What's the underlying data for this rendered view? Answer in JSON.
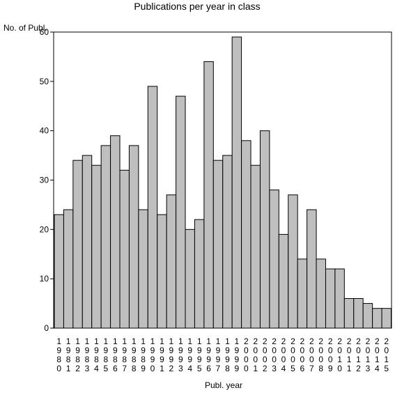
{
  "chart_data": {
    "type": "bar",
    "title": "Publications per year in class",
    "ylabel": "No. of Publ.",
    "xlabel": "Publ. year",
    "ylim": [
      0,
      60
    ],
    "yticks": [
      0,
      10,
      20,
      30,
      40,
      50,
      60
    ],
    "categories": [
      "1980",
      "1981",
      "1982",
      "1983",
      "1984",
      "1985",
      "1986",
      "1987",
      "1988",
      "1989",
      "1990",
      "1991",
      "1992",
      "1993",
      "1994",
      "1995",
      "1996",
      "1997",
      "1998",
      "1999",
      "2000",
      "2001",
      "2002",
      "2003",
      "2004",
      "2005",
      "2006",
      "2007",
      "2008",
      "2009",
      "2010",
      "2011",
      "2012",
      "2013",
      "2014",
      "2015"
    ],
    "values": [
      23,
      24,
      34,
      35,
      33,
      37,
      39,
      32,
      37,
      24,
      49,
      23,
      27,
      47,
      20,
      22,
      54,
      34,
      35,
      59,
      38,
      33,
      40,
      28,
      19,
      27,
      14,
      24,
      14,
      12,
      12,
      6,
      6,
      5,
      4,
      4
    ],
    "bar_color": "#bfbfbf",
    "grid": false
  }
}
